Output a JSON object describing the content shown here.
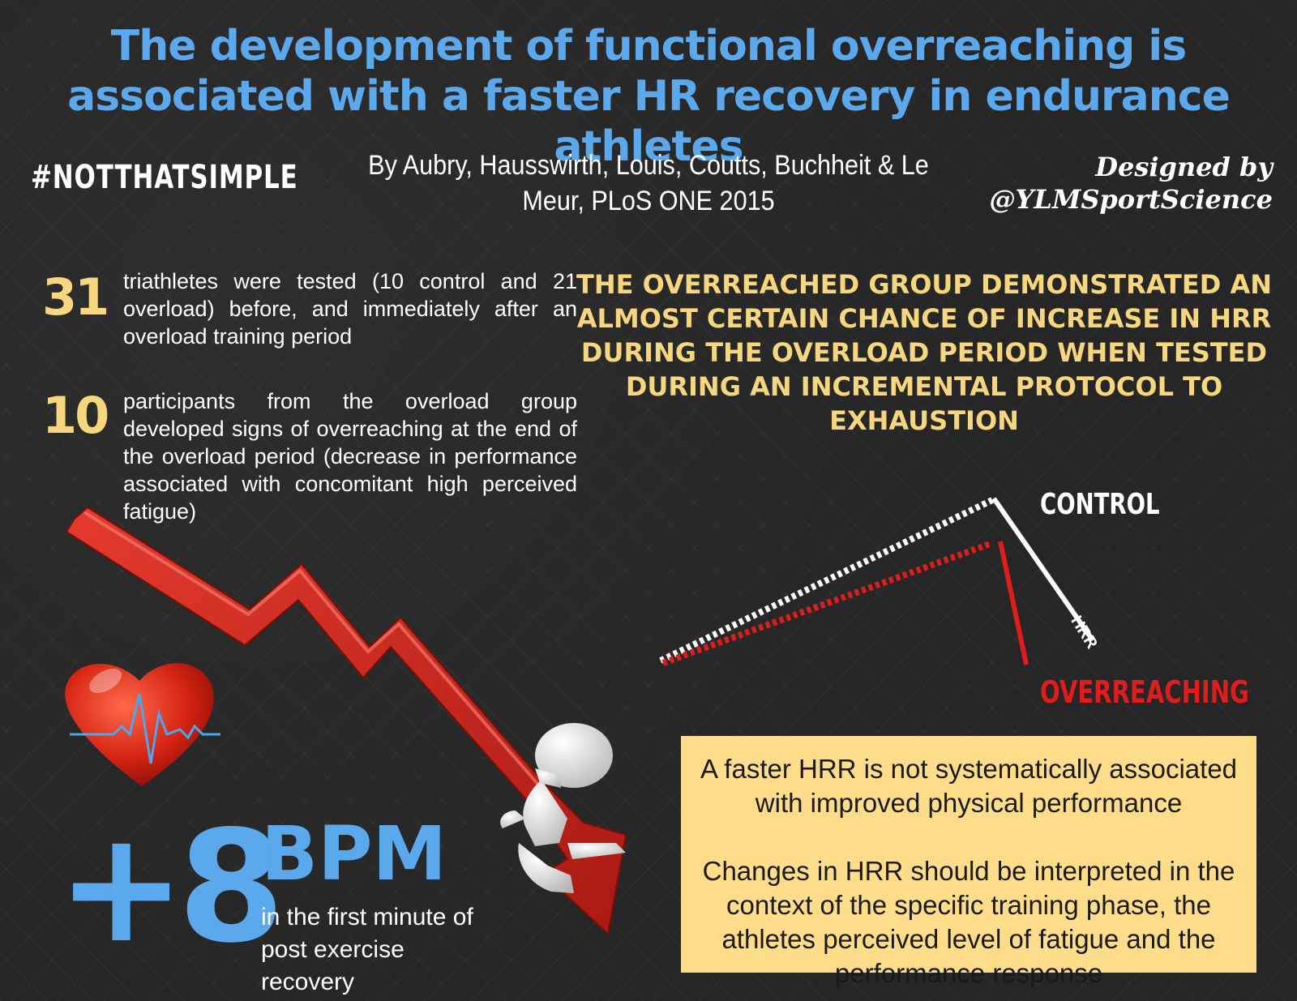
{
  "title": "The development of functional overreaching is associated with a faster HR recovery in endurance athletes",
  "hashtag": "#NOTTHATSIMPLE",
  "authors": "By Aubry, Hausswirth, Louis, Coutts, Buchheit & Le Meur, PLoS ONE 2015",
  "credit": {
    "line1": "Designed by",
    "line2": "@YLMSportScience"
  },
  "stats": [
    {
      "number": "31",
      "text": "triathletes were tested (10 control and 21 overload) before, and immediately after an overload training period"
    },
    {
      "number": "10",
      "text": "participants from the overload group developed signs of overreaching at the end of the overload period (decrease in performance associated with concomitant high perceived fatigue)"
    }
  ],
  "headline": "The overreached group demonstrated an almost certain chance of increase in HRR during the overload period when tested during an incremental protocol to exhaustion",
  "diagram": {
    "control_label": "CONTROL",
    "overreaching_label": "OVERREACHING",
    "hrr_label": "HRR",
    "control_color": "#ffffff",
    "overreaching_color": "#e01c1c"
  },
  "result": {
    "value": "+8",
    "unit": "BPM",
    "description": "in the first minute of post exercise recovery",
    "color": "#5ba8ec"
  },
  "notes": [
    "A faster HRR is not systematically associated with improved physical performance",
    "Changes in HRR should be interpreted in the context of the specific training phase, the athletes perceived level of fatigue and the performance response"
  ],
  "colors": {
    "title": "#5ba8ec",
    "accent_yellow": "#f6d67e",
    "box": "#fddd8a",
    "background": "#262626"
  }
}
